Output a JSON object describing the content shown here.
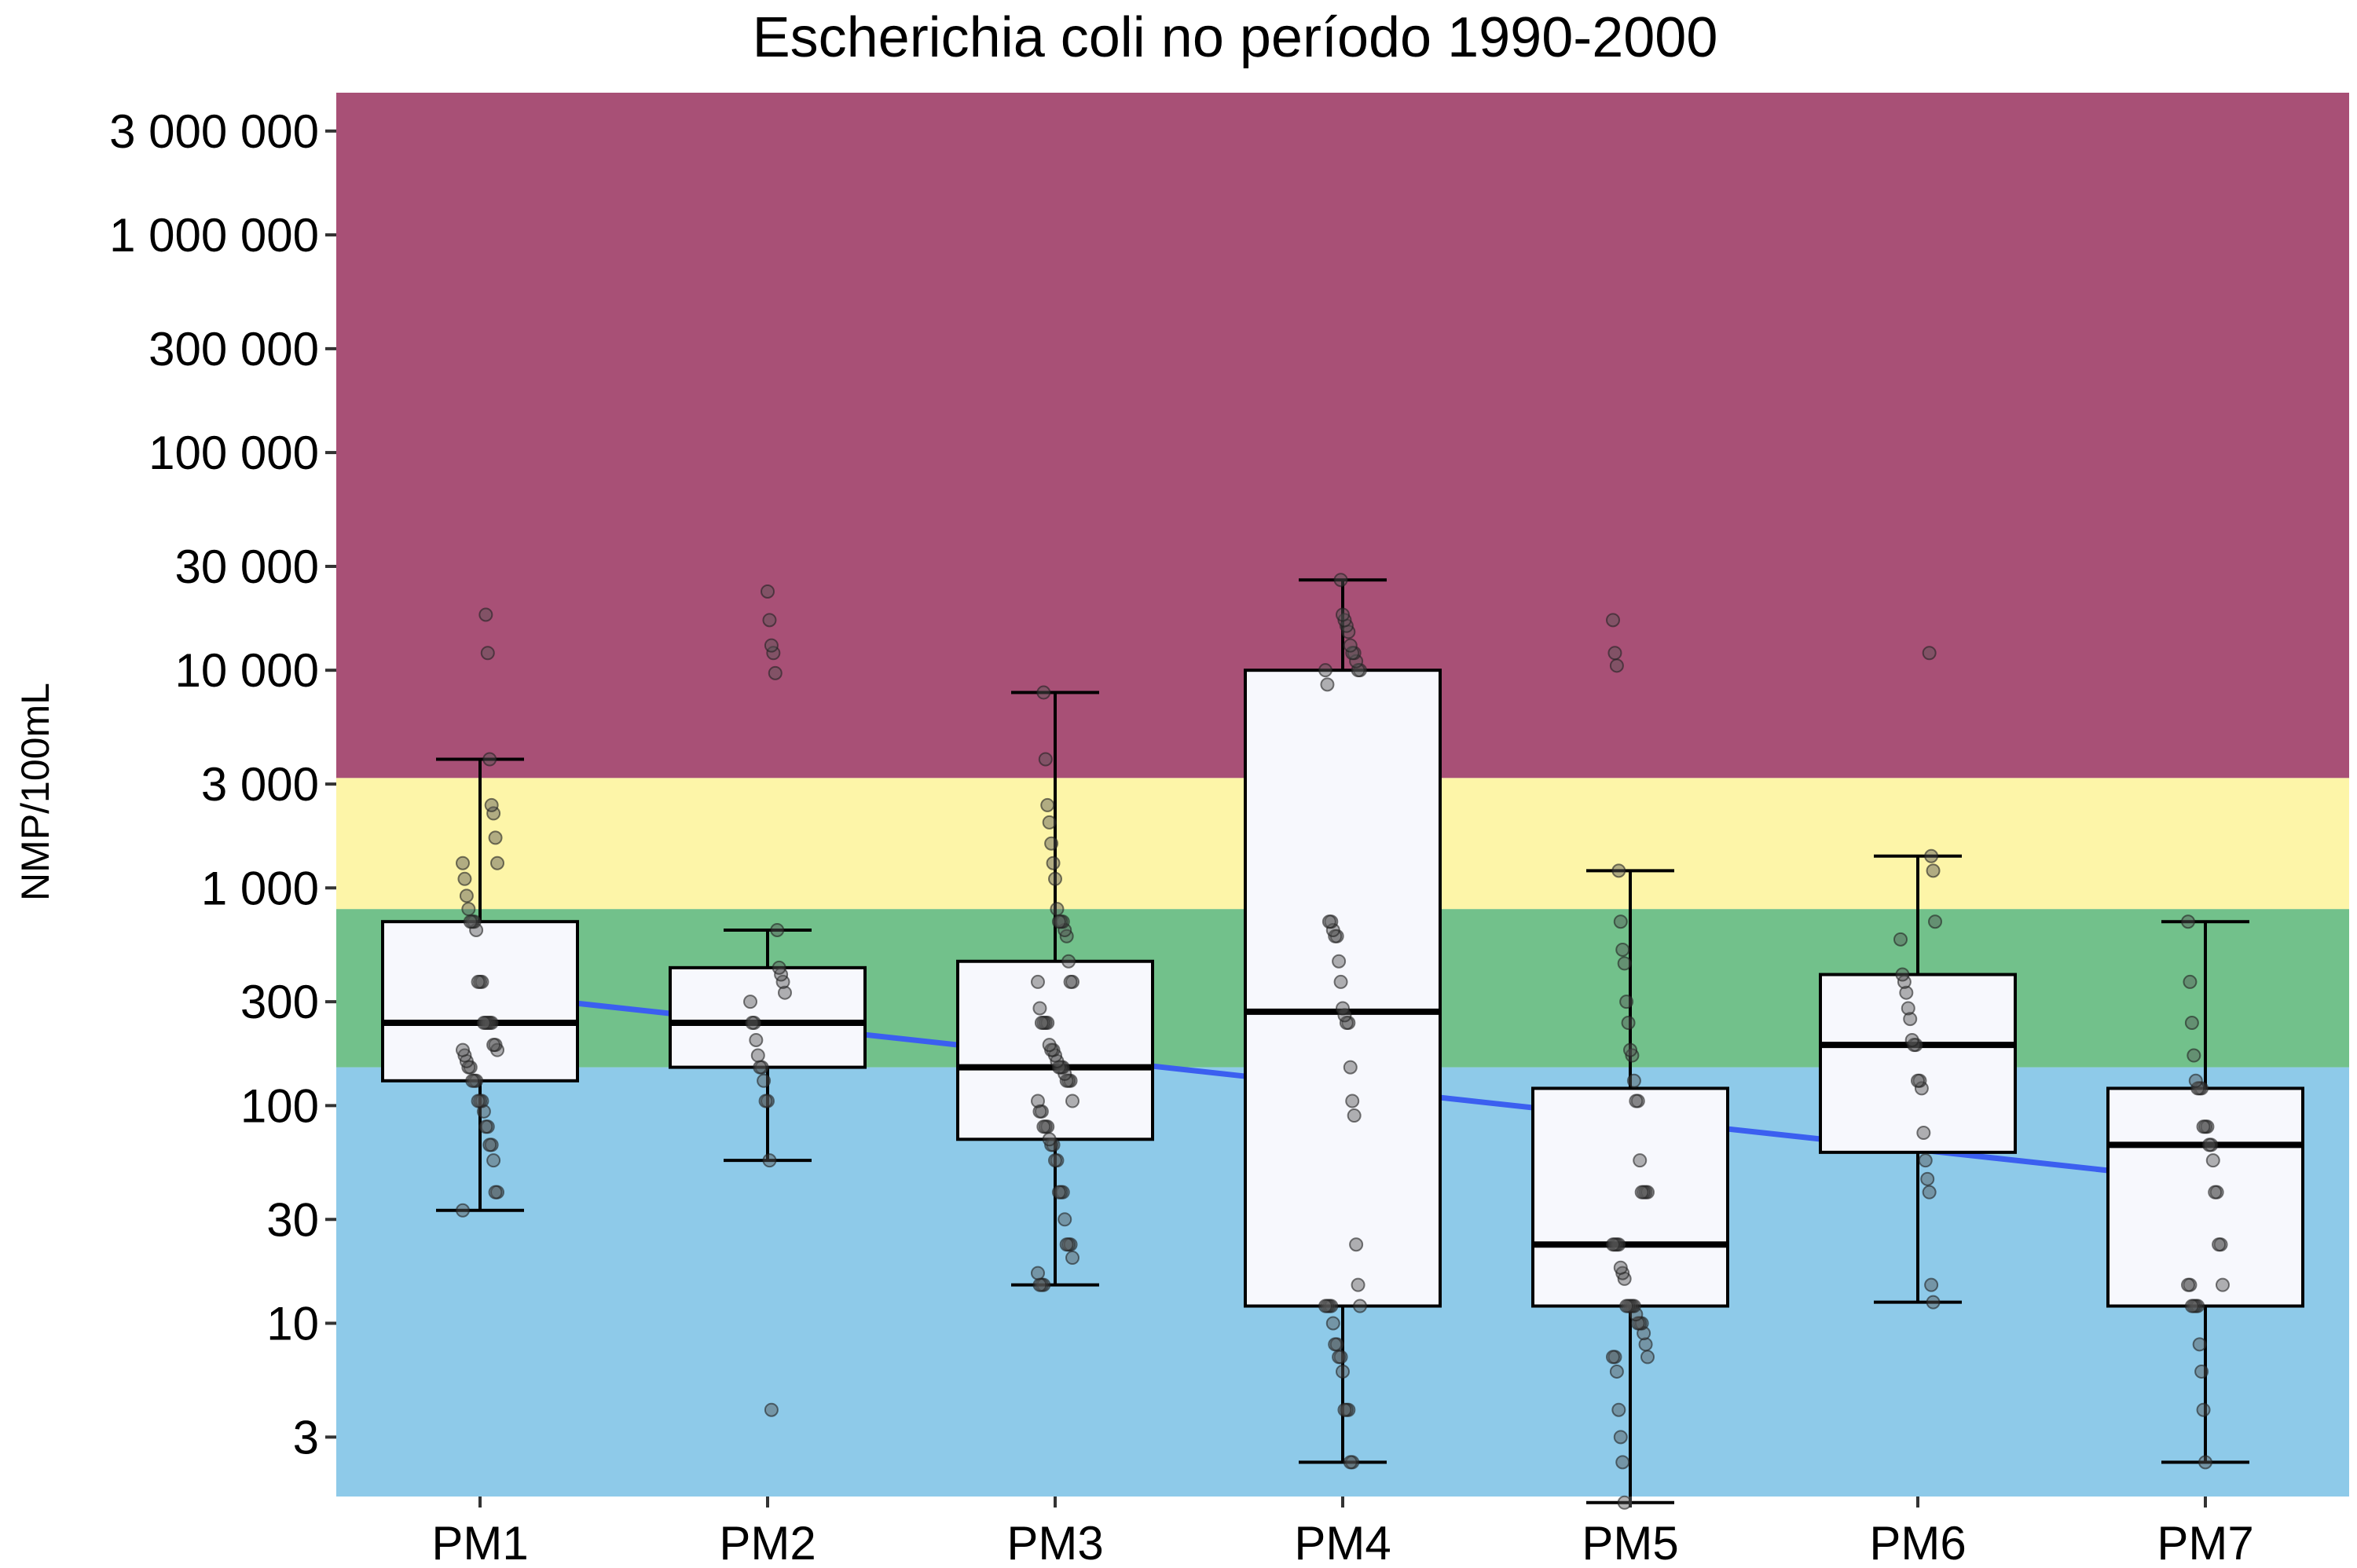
{
  "chart_data": {
    "type": "box",
    "title": "Escherichia coli no período 1990-2000",
    "ylabel": "NMP/100mL",
    "xlabel": "",
    "y_scale": "log",
    "ylim": [
      1.6,
      4500000
    ],
    "yticks": [
      {
        "value": 3,
        "label": "3"
      },
      {
        "value": 10,
        "label": "10"
      },
      {
        "value": 30,
        "label": "30"
      },
      {
        "value": 100,
        "label": "100"
      },
      {
        "value": 300,
        "label": "300"
      },
      {
        "value": 1000,
        "label": "1 000"
      },
      {
        "value": 3000,
        "label": "3 000"
      },
      {
        "value": 10000,
        "label": "10 000"
      },
      {
        "value": 30000,
        "label": "30 000"
      },
      {
        "value": 100000,
        "label": "100 000"
      },
      {
        "value": 300000,
        "label": "300 000"
      },
      {
        "value": 1000000,
        "label": "1 000 000"
      },
      {
        "value": 3000000,
        "label": "3 000 000"
      }
    ],
    "categories": [
      "PM1",
      "PM2",
      "PM3",
      "PM4",
      "PM5",
      "PM6",
      "PM7"
    ],
    "bands": [
      {
        "from": 1.6,
        "to": 150,
        "color": "#8ecae9"
      },
      {
        "from": 150,
        "to": 800,
        "color": "#72c18b"
      },
      {
        "from": 800,
        "to": 3200,
        "color": "#fdf5a8"
      },
      {
        "from": 3200,
        "to": 4500000,
        "color": "#a85076"
      }
    ],
    "boxes": [
      {
        "category": "PM1",
        "whisker_low": 33,
        "q1": 130,
        "median": 240,
        "q3": 700,
        "whisker_high": 3900,
        "outliers": [
          12000,
          18000
        ]
      },
      {
        "category": "PM2",
        "whisker_low": 56,
        "q1": 150,
        "median": 240,
        "q3": 430,
        "whisker_high": 640,
        "outliers": [
          4,
          9700,
          12000,
          13000,
          17000,
          23000
        ]
      },
      {
        "category": "PM3",
        "whisker_low": 15,
        "q1": 70,
        "median": 150,
        "q3": 460,
        "whisker_high": 7900,
        "outliers": []
      },
      {
        "category": "PM4",
        "whisker_low": 2.3,
        "q1": 12,
        "median": 270,
        "q3": 10000,
        "whisker_high": 26000,
        "outliers": []
      },
      {
        "category": "PM5",
        "whisker_low": 1.5,
        "q1": 12,
        "median": 23,
        "q3": 120,
        "whisker_high": 1200,
        "outliers": [
          10500,
          12000,
          17000
        ]
      },
      {
        "category": "PM6",
        "whisker_low": 12.5,
        "q1": 61,
        "median": 190,
        "q3": 400,
        "whisker_high": 1400,
        "outliers": [
          12000
        ]
      },
      {
        "category": "PM7",
        "whisker_low": 2.3,
        "q1": 12,
        "median": 66,
        "q3": 120,
        "whisker_high": 700,
        "outliers": []
      }
    ],
    "points": {
      "PM1": [
        33,
        40,
        40,
        56,
        66,
        66,
        80,
        80,
        94,
        105,
        105,
        105,
        130,
        130,
        130,
        150,
        150,
        160,
        170,
        180,
        180,
        190,
        190,
        240,
        240,
        240,
        240,
        240,
        370,
        370,
        370,
        640,
        700,
        700,
        700,
        800,
        920,
        1100,
        1300,
        1300,
        1700,
        2200,
        2400,
        3900,
        12000,
        18000
      ],
      "PM2": [
        4,
        56,
        105,
        105,
        130,
        150,
        150,
        170,
        200,
        240,
        240,
        300,
        330,
        370,
        400,
        430,
        640,
        9700,
        12000,
        13000,
        17000,
        23000
      ],
      "PM3": [
        15,
        15,
        15,
        17,
        20,
        23,
        23,
        23,
        30,
        40,
        40,
        40,
        56,
        56,
        66,
        66,
        70,
        80,
        80,
        80,
        94,
        94,
        105,
        105,
        130,
        130,
        130,
        140,
        150,
        150,
        150,
        160,
        170,
        180,
        180,
        190,
        240,
        240,
        240,
        240,
        280,
        370,
        370,
        370,
        460,
        600,
        640,
        700,
        700,
        700,
        800,
        1100,
        1300,
        1600,
        2000,
        2400,
        3900,
        7900
      ],
      "PM4": [
        2.3,
        2.3,
        4,
        4,
        4,
        6,
        7,
        7,
        8,
        8,
        10,
        12,
        12,
        12,
        12,
        12,
        15,
        23,
        90,
        105,
        150,
        240,
        240,
        260,
        280,
        370,
        460,
        600,
        600,
        640,
        700,
        700,
        8600,
        10000,
        10000,
        10000,
        11000,
        12000,
        12000,
        13000,
        15000,
        16000,
        17000,
        18000,
        26000
      ],
      "PM5": [
        1.5,
        2.3,
        3,
        4,
        6,
        7,
        7,
        7,
        8,
        9,
        10,
        10,
        10,
        11,
        12,
        12,
        12,
        12,
        12,
        16,
        17,
        18,
        23,
        23,
        23,
        23,
        40,
        40,
        40,
        40,
        56,
        105,
        105,
        130,
        170,
        180,
        240,
        300,
        450,
        520,
        700,
        1200,
        10500,
        12000,
        17000
      ],
      "PM6": [
        12.5,
        15,
        40,
        46,
        56,
        75,
        120,
        130,
        130,
        190,
        190,
        200,
        250,
        280,
        330,
        370,
        400,
        580,
        700,
        1200,
        1400,
        12000
      ],
      "PM7": [
        2.3,
        4,
        6,
        8,
        12,
        12,
        12,
        12,
        15,
        15,
        15,
        23,
        23,
        40,
        40,
        56,
        66,
        66,
        80,
        80,
        80,
        120,
        120,
        120,
        130,
        170,
        240,
        370,
        700
      ]
    },
    "trend_line": {
      "color": "#3b5ff0",
      "from": {
        "category": "PM1",
        "value": 330
      },
      "to": {
        "category": "PM7",
        "value": 45
      }
    },
    "colors": {
      "box_fill": "#f7f8fd",
      "box_stroke": "#000000",
      "median": "#000000",
      "points": "#555555"
    },
    "grid": false,
    "legend": "none"
  }
}
